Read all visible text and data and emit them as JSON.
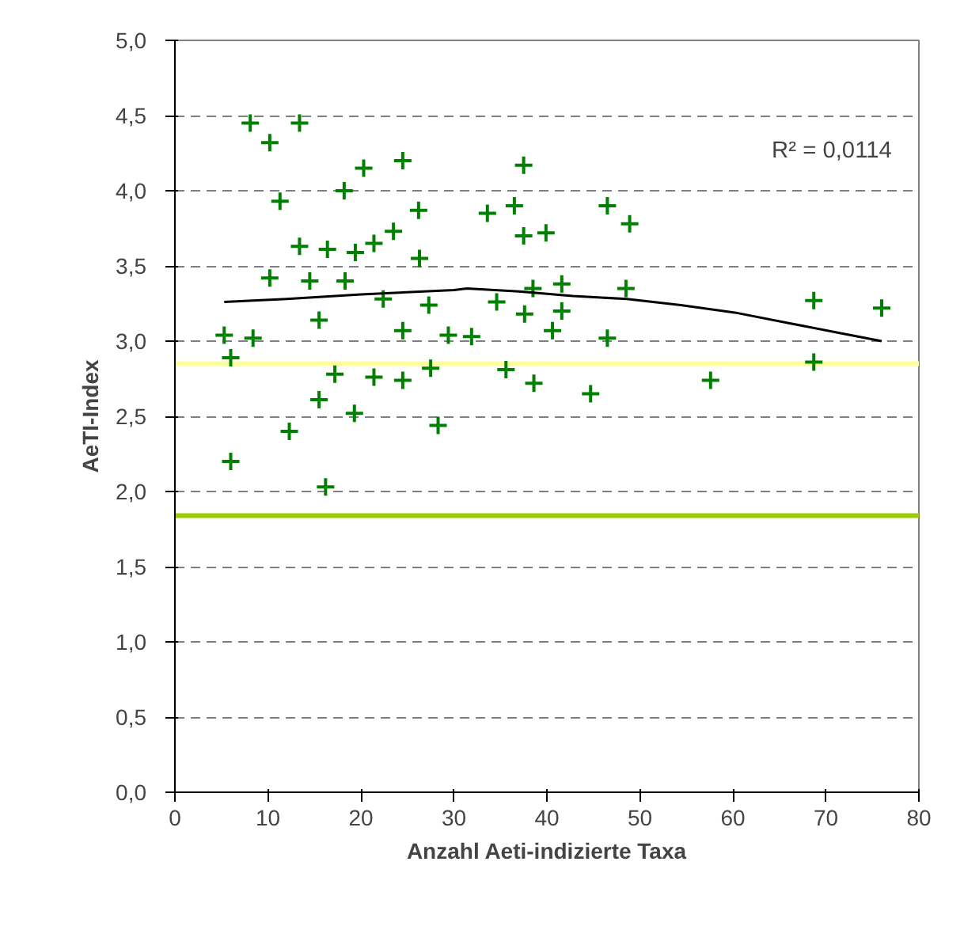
{
  "chart_data": {
    "type": "scatter",
    "xlabel": "Anzahl Aeti-indizierte Taxa",
    "ylabel": "AeTI-Index",
    "xlim": [
      0,
      80
    ],
    "xticks": [
      0,
      10,
      20,
      30,
      40,
      50,
      60,
      70,
      80
    ],
    "ylim": [
      0,
      5
    ],
    "yticks": [
      {
        "value": 0,
        "label": "0,0"
      },
      {
        "value": 0.5,
        "label": "0,5"
      },
      {
        "value": 1,
        "label": "1,0"
      },
      {
        "value": 1.5,
        "label": "1,5"
      },
      {
        "value": 2,
        "label": "2,0"
      },
      {
        "value": 2.5,
        "label": "2,5"
      },
      {
        "value": 3,
        "label": "3,0"
      },
      {
        "value": 3.5,
        "label": "3,5"
      },
      {
        "value": 4,
        "label": "4,0"
      },
      {
        "value": 4.5,
        "label": "4,5"
      },
      {
        "value": 5,
        "label": "5,0"
      }
    ],
    "grid": "y",
    "marker": "cross",
    "series": [
      {
        "color": "#008000",
        "x": [
          8.1,
          13.4,
          10.2,
          20.3,
          24.5,
          11.3,
          18.2,
          26.2,
          33.6,
          13.4,
          16.4,
          19.4,
          26.3,
          10.2,
          14.5,
          15.5,
          22.4,
          27.3,
          34.6,
          5.3,
          8.4,
          24.5,
          29.4,
          31.9,
          6.0,
          17.2,
          21.4,
          24.5,
          27.5,
          15.5,
          19.3,
          28.3,
          12.3,
          6.0,
          16.2,
          18.3,
          21.4,
          23.5,
          37.5,
          36.5,
          37.5,
          39.9,
          46.5,
          48.9,
          38.5,
          41.6,
          48.5,
          37.6,
          41.6,
          40.6,
          46.5,
          35.6,
          38.6,
          44.7,
          57.6,
          68.7,
          76.0,
          68.7
        ],
        "values": [
          4.45,
          4.45,
          4.32,
          4.15,
          4.2,
          3.93,
          4.0,
          3.87,
          3.85,
          3.63,
          3.61,
          3.59,
          3.55,
          3.42,
          3.4,
          3.14,
          3.28,
          3.24,
          3.26,
          3.04,
          3.02,
          3.07,
          3.04,
          3.03,
          2.89,
          2.78,
          2.76,
          2.74,
          2.82,
          2.61,
          2.52,
          2.44,
          2.4,
          2.2,
          2.03,
          3.4,
          3.65,
          3.73,
          4.17,
          3.9,
          3.7,
          3.72,
          3.9,
          3.78,
          3.35,
          3.38,
          3.35,
          3.18,
          3.2,
          3.07,
          3.02,
          2.81,
          2.72,
          2.65,
          2.74,
          3.27,
          3.22,
          2.86
        ]
      },
      {
        "type": "line",
        "color": "#000000",
        "marker": "none",
        "x": [
          5.3,
          12,
          20,
          30,
          31.4,
          37,
          42.8,
          48.6,
          54.4,
          60.2,
          66,
          71.8,
          76
        ],
        "values": [
          3.26,
          3.28,
          3.31,
          3.34,
          3.35,
          3.33,
          3.3,
          3.28,
          3.24,
          3.19,
          3.12,
          3.05,
          3.0
        ]
      }
    ],
    "ref_lines": [
      {
        "axis": "y",
        "value": 2.85,
        "label": null,
        "color": "#ffff99"
      },
      {
        "axis": "y",
        "value": 1.84,
        "label": null,
        "color": "#99cc00"
      }
    ],
    "annotations": [
      "R² = 0,0114"
    ]
  }
}
